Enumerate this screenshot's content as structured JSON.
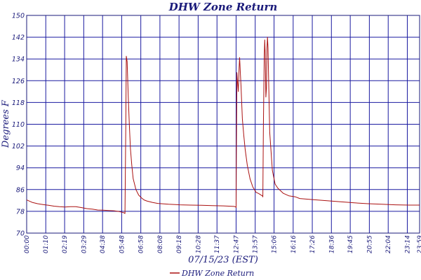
{
  "chart_data": {
    "type": "line",
    "title": "DHW Zone Return",
    "xlabel": "07/15/23 (EST)",
    "ylabel": "Degrees F",
    "ylim": [
      70,
      150
    ],
    "yticks": [
      70,
      78,
      86,
      94,
      102,
      110,
      118,
      126,
      134,
      142,
      150
    ],
    "xlim": [
      0,
      1439
    ],
    "xtick_labels": [
      "00:00",
      "01:10",
      "02:19",
      "03:29",
      "04:38",
      "05:48",
      "06:58",
      "08:08",
      "09:18",
      "10:28",
      "11:37",
      "12:47",
      "13:57",
      "15:06",
      "16:16",
      "17:26",
      "18:36",
      "19:45",
      "20:55",
      "22:04",
      "23:14",
      "23:59"
    ],
    "xtick_minutes": [
      0,
      70,
      139,
      209,
      278,
      348,
      418,
      488,
      558,
      628,
      697,
      767,
      837,
      906,
      976,
      1046,
      1116,
      1185,
      1255,
      1324,
      1394,
      1439
    ],
    "grid": true,
    "legend_position": "bottom-center",
    "line_color": "#aa1111",
    "grid_color": "#1a1aa0",
    "text_color": "#1a1a7a",
    "series": [
      {
        "name": "DHW Zone Return",
        "x": [
          0,
          20,
          40,
          60,
          80,
          100,
          120,
          140,
          160,
          180,
          200,
          220,
          240,
          260,
          280,
          300,
          320,
          340,
          355,
          360,
          363,
          365,
          368,
          372,
          376,
          380,
          385,
          390,
          400,
          410,
          420,
          430,
          440,
          460,
          480,
          520,
          560,
          600,
          640,
          680,
          720,
          760,
          766,
          767,
          768,
          770,
          772,
          775,
          778,
          780,
          783,
          785,
          790,
          795,
          800,
          808,
          818,
          828,
          840,
          850,
          858,
          864,
          865,
          867,
          870,
          872,
          874,
          876,
          878,
          880,
          882,
          884,
          886,
          890,
          895,
          900,
          910,
          920,
          940,
          960,
          985,
          1000,
          1050,
          1100,
          1150,
          1200,
          1250,
          1300,
          1350,
          1400,
          1439
        ],
        "values": [
          82.2,
          81.3,
          80.8,
          80.5,
          80.2,
          79.9,
          79.7,
          79.6,
          79.7,
          79.7,
          79.4,
          79.0,
          78.8,
          78.5,
          78.4,
          78.3,
          78.2,
          77.9,
          77.5,
          77.2,
          110,
          135,
          133,
          120,
          110,
          101,
          95,
          90,
          86,
          84,
          83,
          82.2,
          81.8,
          81.3,
          80.9,
          80.6,
          80.4,
          80.3,
          80.2,
          80.1,
          80.0,
          79.8,
          79.6,
          79.4,
          99,
          129,
          126,
          122,
          131,
          134.5,
          128,
          124,
          112,
          106,
          101,
          95,
          90,
          87,
          85,
          84.5,
          84.0,
          83.6,
          83.3,
          110,
          135,
          141,
          135,
          120,
          123,
          138,
          142,
          138,
          127,
          107,
          100,
          93,
          88,
          86.5,
          84.6,
          83.7,
          83.3,
          82.7,
          82.3,
          81.9,
          81.5,
          81.1,
          80.8,
          80.6,
          80.4,
          80.3,
          80.3
        ]
      }
    ]
  }
}
